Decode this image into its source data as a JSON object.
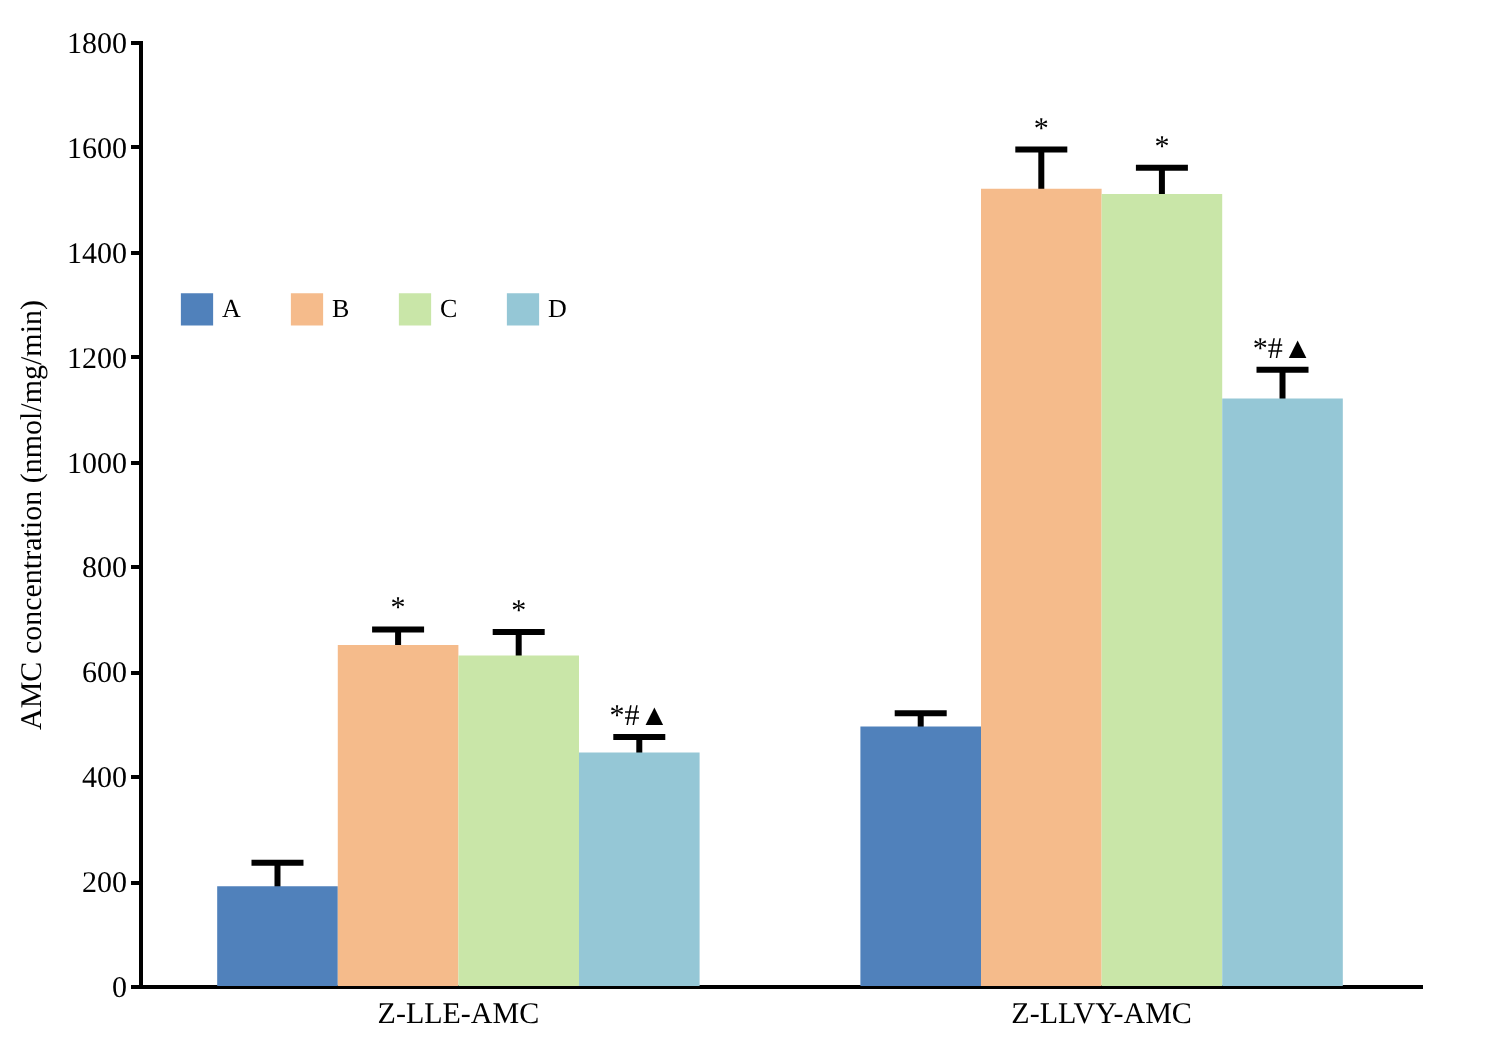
{
  "chart_data": {
    "type": "bar",
    "ylabel": "AMC concentration (nmol/mg/min)",
    "categories": [
      "Z-LLE-AMC",
      "Z-LLVY-AMC"
    ],
    "series": [
      {
        "name": "A",
        "color": "#5081bb",
        "values": [
          190,
          495
        ],
        "errors": [
          45,
          25
        ]
      },
      {
        "name": "B",
        "color": "#f5bb8b",
        "values": [
          650,
          1520
        ],
        "errors": [
          30,
          75
        ],
        "value_labels": [
          "*",
          "*"
        ]
      },
      {
        "name": "C",
        "color": "#c9e6a8",
        "values": [
          630,
          1510
        ],
        "errors": [
          45,
          50
        ],
        "value_labels": [
          "*",
          "*"
        ]
      },
      {
        "name": "D",
        "color": "#95c7d6",
        "values": [
          445,
          1120
        ],
        "errors": [
          30,
          55
        ],
        "value_labels": [
          "*#▲",
          "*#▲"
        ]
      }
    ],
    "ylim": [
      0,
      1800
    ],
    "yticks": [
      0,
      200,
      400,
      600,
      800,
      1000,
      1200,
      1400,
      1600,
      1800
    ],
    "grid": false,
    "legend": "top left"
  }
}
